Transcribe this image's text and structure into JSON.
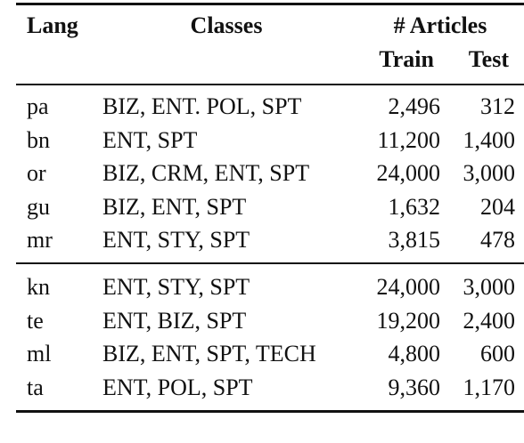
{
  "table": {
    "header": {
      "lang": "Lang",
      "classes": "Classes",
      "articles": "# Articles",
      "train": "Train",
      "test": "Test"
    },
    "groups": [
      [
        [
          "pa",
          "BIZ, ENT. POL, SPT",
          "2,496",
          "312"
        ],
        [
          "bn",
          "ENT, SPT",
          "11,200",
          "1,400"
        ],
        [
          "or",
          "BIZ, CRM, ENT, SPT",
          "24,000",
          "3,000"
        ],
        [
          "gu",
          "BIZ, ENT, SPT",
          "1,632",
          "204"
        ],
        [
          "mr",
          "ENT, STY, SPT",
          "3,815",
          "478"
        ]
      ],
      [
        [
          "kn",
          "ENT, STY, SPT",
          "24,000",
          "3,000"
        ],
        [
          "te",
          "ENT, BIZ, SPT",
          "19,200",
          "2,400"
        ],
        [
          "ml",
          "BIZ, ENT, SPT, TECH",
          "4,800",
          "600"
        ],
        [
          "ta",
          "ENT, POL, SPT",
          "9,360",
          "1,170"
        ]
      ]
    ]
  }
}
